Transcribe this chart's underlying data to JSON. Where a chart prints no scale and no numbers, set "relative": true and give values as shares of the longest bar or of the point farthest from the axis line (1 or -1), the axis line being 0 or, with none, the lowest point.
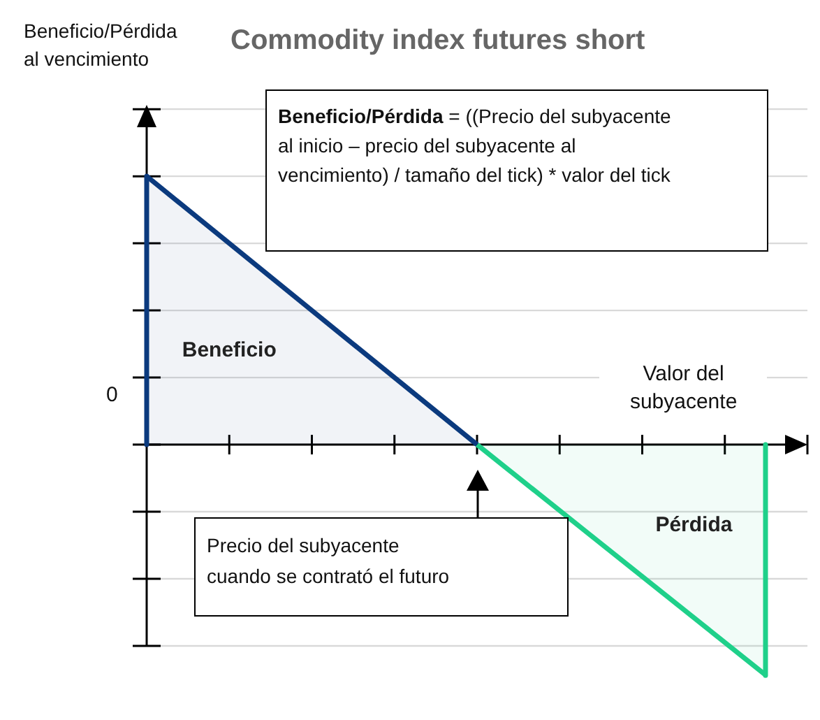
{
  "chart_data": {
    "type": "area",
    "title": "Commodity index futures short",
    "xlabel": "Valor del subyacente",
    "relative": true,
    "grid": "y",
    "legend": false,
    "categories": [
      null,
      null,
      null,
      null,
      null,
      null,
      null,
      null,
      null,
      null,
      null,
      null,
      null,
      null,
      null,
      null,
      null
    ],
    "series": [
      {
        "name": "Beneficio",
        "color": "#0b3a7e",
        "values": [
          1,
          null,
          null,
          null,
          null,
          null,
          null,
          null,
          0,
          null,
          null,
          null,
          null,
          null,
          null,
          null,
          null
        ]
      },
      {
        "name": "Pérdida",
        "color": "#1fd08a",
        "values": [
          null,
          null,
          null,
          null,
          null,
          null,
          null,
          null,
          0,
          null,
          null,
          null,
          null,
          null,
          null,
          -0.86,
          null
        ]
      }
    ],
    "annotations": [
      "Beneficio/Pérdida al vencimiento",
      "0",
      "Beneficio/Pérdida = ((Precio del subyacente al inicio – precio del subyacente al vencimiento) / tamaño del tick) * valor del tick",
      "Precio del subyacente cuando se contrató el futuro"
    ]
  }
}
